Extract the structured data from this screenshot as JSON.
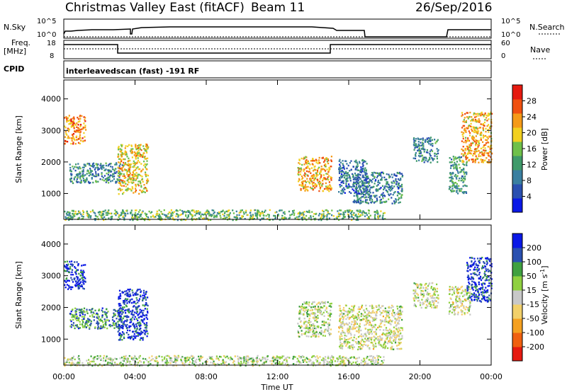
{
  "header": {
    "title": "Christmas Valley East (fitACF)",
    "beam": "Beam 11",
    "date": "26/Sep/2016"
  },
  "top_panels": {
    "nsky_label": "N.Sky",
    "nsearch_label": "N.Search",
    "nsky_ticks": [
      "10^5",
      "10^0"
    ],
    "nsearch_ticks": [
      "10^5",
      "10^0"
    ],
    "freq_label_1": "Freq.",
    "freq_label_2": "[MHz]",
    "freq_ticks": [
      "18",
      "8"
    ],
    "nave_label": "Nave",
    "nave_ticks": [
      "60",
      "0"
    ],
    "cpid_label": "CPID",
    "cpid_text": "interleavedscan (fast) -191 RF"
  },
  "chart_data": [
    {
      "type": "heatmap",
      "title": "",
      "xlabel": "Time UT",
      "ylabel": "Slant Range [km]",
      "xlim": [
        0,
        24
      ],
      "ylim": [
        180,
        4600
      ],
      "x_ticks": [
        "00:00",
        "04:00",
        "08:00",
        "12:00",
        "16:00",
        "20:00",
        "00:00"
      ],
      "y_ticks": [
        "1000",
        "2000",
        "3000",
        "4000"
      ],
      "colorbar": {
        "label": "Power [dB]",
        "ticks": [
          "4",
          "8",
          "12",
          "16",
          "20",
          "24",
          "28"
        ],
        "range": [
          0,
          32
        ],
        "colors": [
          "#0a18e6",
          "#2a4fb0",
          "#3a7fa0",
          "#3f9a6a",
          "#6fc04a",
          "#f2d020",
          "#f59a18",
          "#f05010",
          "#e61a10"
        ]
      },
      "blobs": [
        {
          "t0": 0.0,
          "t1": 1.2,
          "r0": 2600,
          "r1": 3500,
          "value": 24
        },
        {
          "t0": 0.3,
          "t1": 3.3,
          "r0": 1350,
          "r1": 2000,
          "value": 10
        },
        {
          "t0": 3.0,
          "t1": 4.7,
          "r0": 1000,
          "r1": 2600,
          "value": 20
        },
        {
          "t0": 13.1,
          "t1": 15.0,
          "r0": 1100,
          "r1": 2200,
          "value": 22
        },
        {
          "t0": 15.4,
          "t1": 17.0,
          "r0": 1000,
          "r1": 2100,
          "value": 8
        },
        {
          "t0": 16.2,
          "t1": 19.0,
          "r0": 700,
          "r1": 1700,
          "value": 9
        },
        {
          "t0": 19.6,
          "t1": 21.0,
          "r0": 2000,
          "r1": 2800,
          "value": 10
        },
        {
          "t0": 21.6,
          "t1": 22.6,
          "r0": 1000,
          "r1": 2200,
          "value": 12
        },
        {
          "t0": 22.3,
          "t1": 24.0,
          "r0": 2000,
          "r1": 3600,
          "value": 22
        },
        {
          "t0": 0.0,
          "t1": 18.0,
          "r0": 180,
          "r1": 500,
          "value": 14
        }
      ]
    },
    {
      "type": "heatmap",
      "title": "",
      "xlabel": "Time UT",
      "ylabel": "Slant Range [km]",
      "xlim": [
        0,
        24
      ],
      "ylim": [
        180,
        4600
      ],
      "x_ticks": [
        "00:00",
        "04:00",
        "08:00",
        "12:00",
        "16:00",
        "20:00",
        "00:00"
      ],
      "y_ticks": [
        "1000",
        "2000",
        "3000",
        "4000"
      ],
      "colorbar": {
        "label": "Velocity [m s",
        "label_sup": "-1",
        "label_end": "]",
        "ticks": [
          "200",
          "100",
          "50",
          "15",
          "-15",
          "-50",
          "-100",
          "-200"
        ],
        "range": [
          -250,
          250
        ],
        "colors": [
          "#e61a10",
          "#f06010",
          "#f5a020",
          "#f2d06a",
          "#c8c8c8",
          "#8fd040",
          "#3fa040",
          "#2a50b0",
          "#0a18e6"
        ]
      },
      "blobs": [
        {
          "t0": 0.0,
          "t1": 1.2,
          "r0": 2600,
          "r1": 3500,
          "value": 200
        },
        {
          "t0": 0.3,
          "t1": 3.3,
          "r0": 1350,
          "r1": 2000,
          "value": 120
        },
        {
          "t0": 3.0,
          "t1": 4.7,
          "r0": 1000,
          "r1": 2600,
          "value": 200
        },
        {
          "t0": 13.1,
          "t1": 15.0,
          "r0": 1100,
          "r1": 2200,
          "value": 30
        },
        {
          "t0": 15.4,
          "t1": 19.0,
          "r0": 700,
          "r1": 2100,
          "value": 0
        },
        {
          "t0": 19.6,
          "t1": 21.0,
          "r0": 2000,
          "r1": 2800,
          "value": 0
        },
        {
          "t0": 21.6,
          "t1": 22.8,
          "r0": 1800,
          "r1": 2700,
          "value": 0
        },
        {
          "t0": 22.6,
          "t1": 24.0,
          "r0": 2200,
          "r1": 3600,
          "value": 200
        },
        {
          "t0": 0.0,
          "t1": 18.0,
          "r0": 180,
          "r1": 500,
          "value": 30
        }
      ]
    }
  ]
}
